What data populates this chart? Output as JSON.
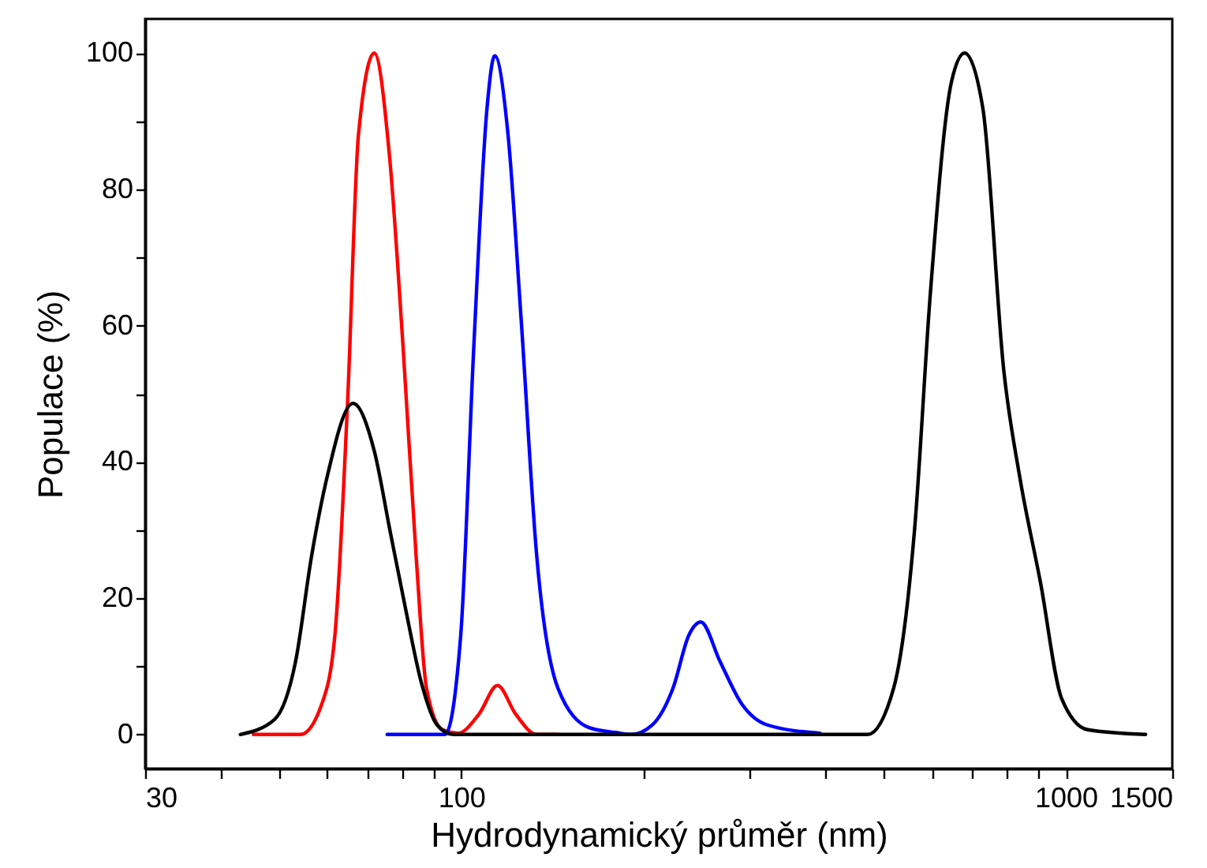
{
  "chart_data": {
    "type": "line",
    "xlabel": "Hydrodynamický průměr (nm)",
    "ylabel": "Populace (%)",
    "log": "x",
    "xlim": [
      30,
      1500
    ],
    "xticks": [
      30,
      {
        "value": 40,
        "label": null
      },
      {
        "value": 50,
        "label": null
      },
      {
        "value": 60,
        "label": null
      },
      {
        "value": 70,
        "label": null
      },
      {
        "value": 80,
        "label": null
      },
      {
        "value": 90,
        "label": null
      },
      100,
      {
        "value": 200,
        "label": null
      },
      {
        "value": 300,
        "label": null
      },
      {
        "value": 400,
        "label": null
      },
      {
        "value": 500,
        "label": null
      },
      {
        "value": 600,
        "label": null
      },
      {
        "value": 700,
        "label": null
      },
      {
        "value": 800,
        "label": null
      },
      {
        "value": 900,
        "label": null
      },
      1000,
      1500
    ],
    "ylim": [
      -5,
      105
    ],
    "yticks": [
      0,
      {
        "value": 10,
        "label": null
      },
      20,
      {
        "value": 30,
        "label": null
      },
      40,
      {
        "value": 50,
        "label": null
      },
      60,
      {
        "value": 70,
        "label": null
      },
      80,
      {
        "value": 90,
        "label": null
      },
      100
    ],
    "marker": "none",
    "line_style": "solid",
    "series": [
      {
        "color": "#ff0000",
        "x": [
          45.3,
          54.2,
          58.8,
          61.8,
          64.9,
          67.6,
          71.8,
          76.2,
          80.1,
          84.2,
          87.6,
          93.1,
          98.8,
          107,
          114.8,
          123,
          133.3,
          144.5
        ],
        "values": [
          0,
          0,
          4.5,
          14.6,
          49.4,
          88,
          100,
          84.2,
          57,
          26.2,
          6.8,
          0.7,
          0.2,
          3,
          7.2,
          3,
          0,
          0
        ]
      },
      {
        "color": "#0000ff",
        "x": [
          75.4,
          94,
          99.8,
          104.9,
          110.3,
          113.6,
          119.5,
          125.6,
          133.3,
          144.5,
          162.8,
          180,
          191,
          207,
          224,
          238,
          249,
          268,
          291,
          321,
          392
        ],
        "values": [
          0,
          0,
          14.6,
          57,
          91.9,
          99.6,
          88,
          61,
          26.2,
          6.8,
          1,
          0.3,
          0,
          1.4,
          6.8,
          14.6,
          16.5,
          10.7,
          4.5,
          1.4,
          0.2
        ]
      },
      {
        "color": "#000000",
        "x": [
          43.1,
          49.1,
          53.2,
          56.5,
          60,
          66.2,
          71.8,
          76.2,
          80.9,
          85.9,
          91.2,
          97,
          470,
          519,
          562,
          597,
          647,
          680,
          729,
          790,
          839,
          908,
          984,
          1087,
          1355
        ],
        "values": [
          0,
          2.2,
          10.7,
          26,
          37.8,
          48.6,
          41.6,
          30,
          18.4,
          7.6,
          1.4,
          0,
          0,
          6.8,
          30,
          64.8,
          95.8,
          100,
          91.9,
          53.2,
          37.8,
          22.3,
          5.3,
          0.7,
          0
        ]
      }
    ]
  }
}
